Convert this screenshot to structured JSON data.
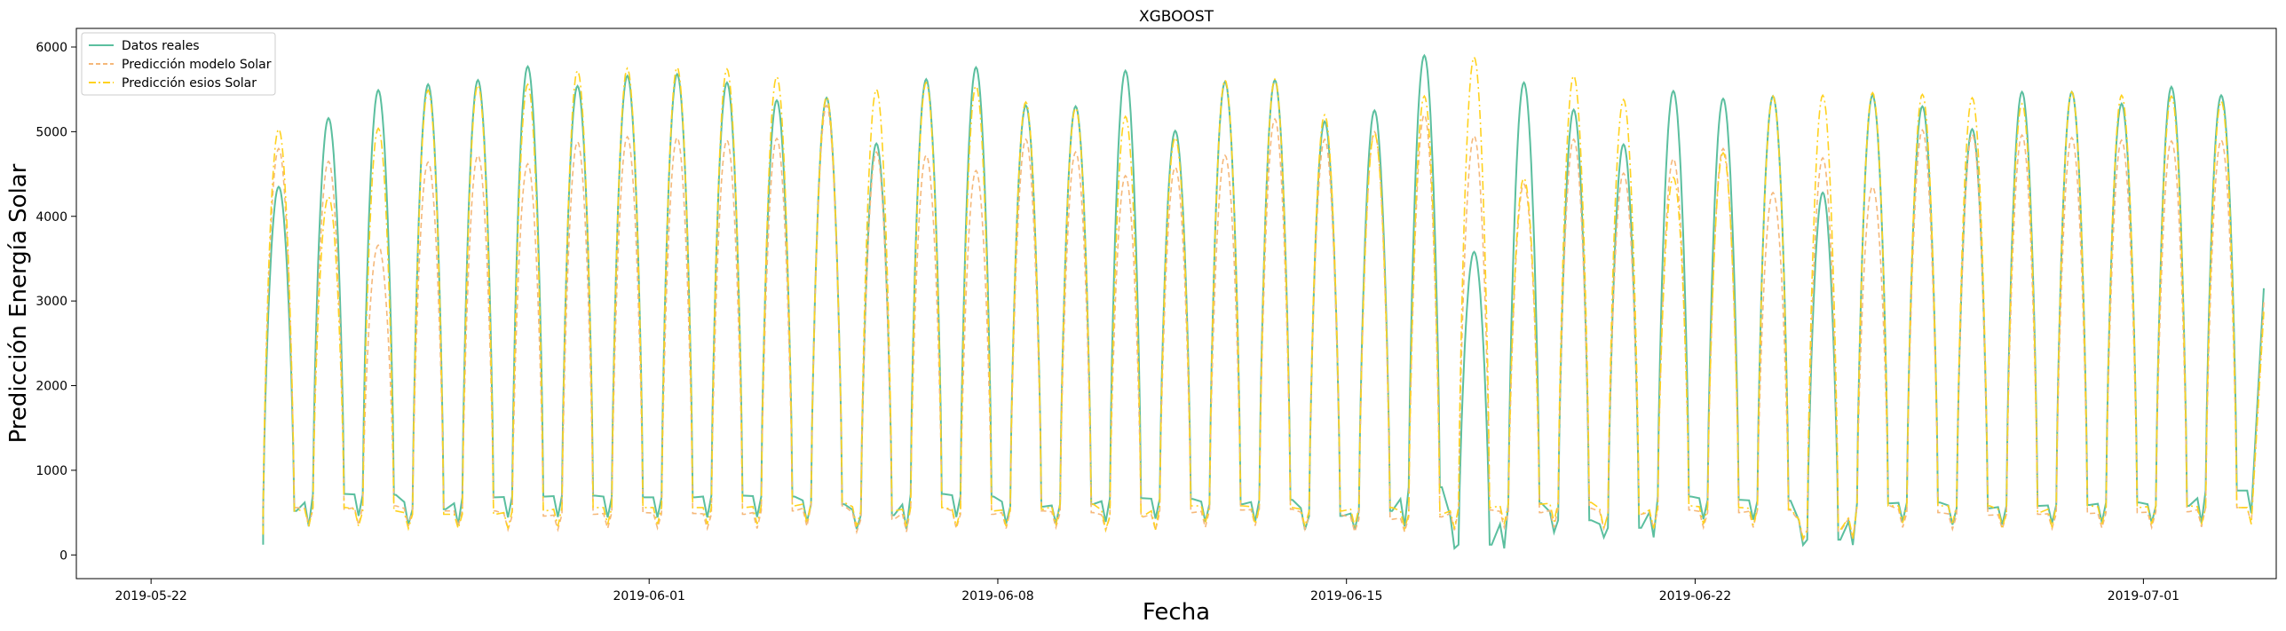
{
  "chart_data": {
    "type": "line",
    "title": "XGBOOST",
    "xlabel": "Fecha",
    "ylabel": "Predicción Energía Solar",
    "x_range": [
      "2019-05-20T12:00",
      "2019-07-03T16:00"
    ],
    "ylim": [
      -280,
      6220
    ],
    "x_ticks": [
      "2019-05-22",
      "2019-06-01",
      "2019-06-08",
      "2019-06-15",
      "2019-06-22",
      "2019-07-01"
    ],
    "y_ticks": [
      0,
      1000,
      2000,
      3000,
      4000,
      5000,
      6000
    ],
    "grid": false,
    "legend_position": "top-left",
    "start_date": "2019-05-24",
    "colors": {
      "real": "#5bbf9f",
      "model": "#f5b87a",
      "esios": "#ffd21f"
    },
    "series": [
      {
        "name": "Datos reales",
        "style": "solid",
        "values": [
          4350,
          5160,
          5490,
          5560,
          5610,
          5770,
          5540,
          5660,
          5680,
          5580,
          5370,
          5400,
          4860,
          5620,
          5760,
          5310,
          5300,
          5720,
          5010,
          5590,
          5610,
          5120,
          5250,
          5900,
          3580,
          5580,
          5260,
          4850,
          5480,
          5390,
          5420,
          4280,
          5430,
          5300,
          5030,
          5470,
          5470,
          5330,
          5530,
          5430
        ],
        "night": [
          520,
          720,
          710,
          540,
          680,
          690,
          700,
          680,
          680,
          700,
          690,
          600,
          470,
          720,
          690,
          570,
          600,
          670,
          660,
          600,
          650,
          460,
          520,
          800,
          120,
          610,
          410,
          320,
          690,
          650,
          640,
          180,
          610,
          620,
          550,
          580,
          590,
          620,
          580,
          760
        ],
        "ends": {
          "start": 120,
          "end": 3150
        }
      },
      {
        "name": "Predicción modelo Solar",
        "style": "dashed",
        "values": [
          4800,
          4650,
          3660,
          4640,
          4720,
          4620,
          4880,
          4940,
          4930,
          4900,
          4920,
          5310,
          4760,
          4720,
          4540,
          4910,
          4760,
          4480,
          4580,
          4720,
          5150,
          4910,
          5000,
          5200,
          4950,
          4380,
          4910,
          4510,
          4680,
          4800,
          4280,
          4690,
          4350,
          5020,
          4970,
          4960,
          4930,
          4900,
          4890,
          4900
        ],
        "night": [
          560,
          540,
          580,
          520,
          520,
          460,
          480,
          500,
          490,
          480,
          520,
          580,
          420,
          560,
          480,
          520,
          500,
          450,
          500,
          530,
          540,
          470,
          420,
          450,
          530,
          500,
          550,
          480,
          530,
          500,
          530,
          280,
          580,
          500,
          470,
          480,
          490,
          500,
          510,
          560
        ],
        "ends": {
          "start": 260,
          "end": 2990
        }
      },
      {
        "name": "Predicción esios Solar",
        "style": "dashdot",
        "values": [
          5030,
          4230,
          5040,
          5490,
          5550,
          5560,
          5720,
          5750,
          5760,
          5740,
          5650,
          5410,
          5500,
          5580,
          5540,
          5350,
          5280,
          5180,
          4930,
          5610,
          5620,
          5200,
          4980,
          5420,
          5880,
          4450,
          5660,
          5380,
          4460,
          4750,
          5420,
          5430,
          5460,
          5440,
          5400,
          5330,
          5470,
          5430,
          5420,
          5360
        ],
        "night": [
          520,
          560,
          520,
          480,
          480,
          520,
          560,
          560,
          560,
          560,
          580,
          620,
          520,
          560,
          520,
          540,
          600,
          460,
          580,
          580,
          560,
          520,
          560,
          480,
          560,
          600,
          620,
          480,
          580,
          560,
          540,
          300,
          580,
          580,
          580,
          500,
          580,
          560,
          580,
          560
        ],
        "ends": {
          "start": 240,
          "end": 2870
        }
      }
    ]
  }
}
